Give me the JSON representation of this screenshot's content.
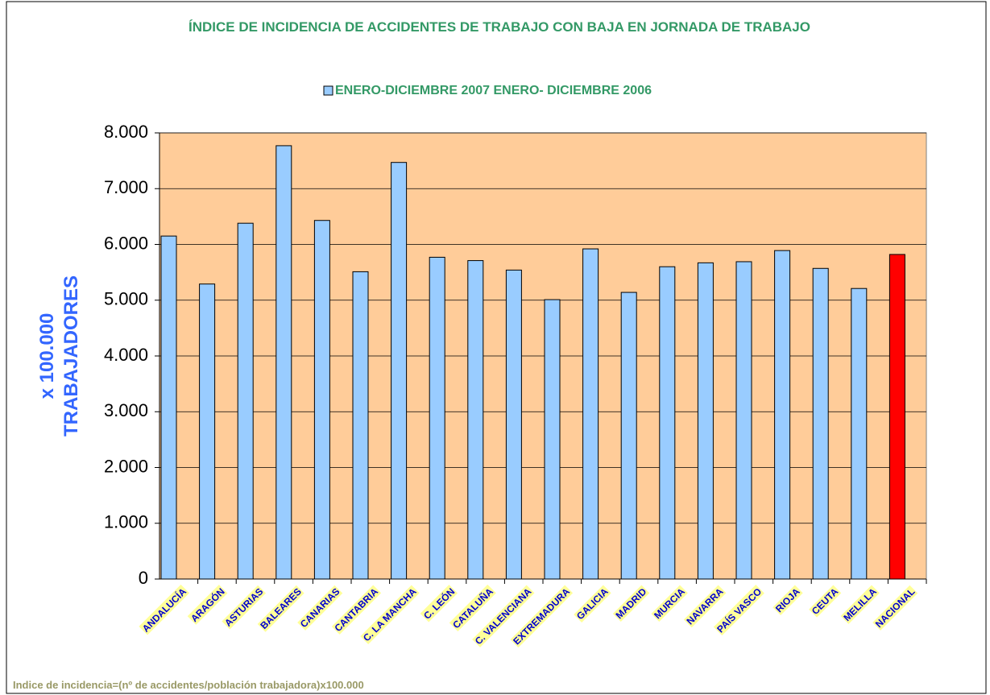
{
  "chart_data": {
    "type": "bar",
    "title": "ÍNDICE DE INCIDENCIA DE ACCIDENTES DE TRABAJO CON BAJA EN JORNADA DE TRABAJO",
    "ylabel": [
      "x 100.000",
      "TRABAJADORES"
    ],
    "note": "Indice de incidencia=(nº de accidentes/población trabajadora)x100.000",
    "categories": [
      "ANDALUCÍA",
      "ARAGÓN",
      "ASTURIAS",
      "BALEARES",
      "CANARIAS",
      "CANTABRIA",
      "C. LA MANCHA",
      "C. LEÓN",
      "CATALUÑA",
      "C. VALENCIANA",
      "EXTREMADURA",
      "GALICIA",
      "MADRID",
      "MURCIA",
      "NAVARRA",
      "PAÍS VASCO",
      "RIOJA",
      "CEUTA",
      "MELILLA",
      "NACIONAL"
    ],
    "series": [
      {
        "name": "ENERO-DICIEMBRE 2007 ENERO- DICIEMBRE 2006",
        "color": "#99ccff",
        "values": [
          6150,
          5290,
          6380,
          7770,
          6430,
          5510,
          7470,
          5770,
          5710,
          5540,
          5010,
          5920,
          5140,
          5600,
          5670,
          5690,
          5890,
          5570,
          5210,
          5820
        ],
        "colors": [
          "#99ccff",
          "#99ccff",
          "#99ccff",
          "#99ccff",
          "#99ccff",
          "#99ccff",
          "#99ccff",
          "#99ccff",
          "#99ccff",
          "#99ccff",
          "#99ccff",
          "#99ccff",
          "#99ccff",
          "#99ccff",
          "#99ccff",
          "#99ccff",
          "#99ccff",
          "#99ccff",
          "#99ccff",
          "#ff0000"
        ]
      }
    ],
    "ylim": [
      0,
      8000
    ],
    "yticks": [
      0,
      {
        "value": 1000,
        "label": "1.000"
      },
      {
        "value": 2000,
        "label": "2.000"
      },
      {
        "value": 3000,
        "label": "3.000"
      },
      {
        "value": 4000,
        "label": "4.000"
      },
      {
        "value": 5000,
        "label": "5.000"
      },
      {
        "value": 6000,
        "label": "6.000"
      },
      {
        "value": 7000,
        "label": "7.000"
      },
      {
        "value": 8000,
        "label": "8.000"
      }
    ],
    "grid": true,
    "plot_background": "#ffcc99"
  }
}
